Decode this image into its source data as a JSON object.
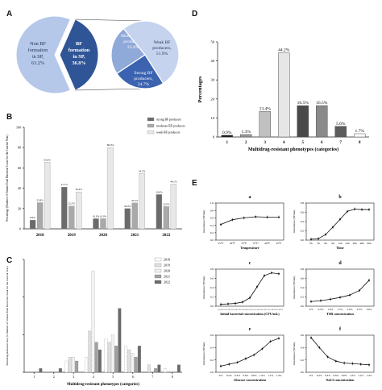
{
  "panels": {
    "a": "A",
    "b": "B",
    "c": "C",
    "d": "D",
    "e": "E"
  },
  "pie": {
    "left_label": [
      "Non BF",
      "formation",
      "in SP,",
      "63.2%"
    ],
    "center_label": [
      "BF",
      "formation",
      "in SP,",
      "36.8%"
    ],
    "right_slices": [
      {
        "lines": [
          "Moderate BF",
          "producers,",
          "23.4%"
        ],
        "color": "#8fa9d8"
      },
      {
        "lines": [
          "Weak BF",
          "producers,",
          "51.9%"
        ],
        "color": "#c5d3ee"
      },
      {
        "lines": [
          "Strong BF",
          "producers,",
          "24.7%"
        ],
        "color": "#3c63b0"
      }
    ],
    "colors": {
      "nonbf": "#b5c8ea",
      "bf": "#2f5597"
    }
  },
  "chart_data": [
    {
      "id": "B",
      "type": "bar",
      "categories": [
        "2018",
        "2019",
        "2020",
        "2021",
        "2022"
      ],
      "series": [
        {
          "name": "strong BF producers",
          "values": [
            8.6,
            41.1,
            10.0,
            20.0,
            33.8
          ],
          "labels": [
            "8.6%",
            "41.1%",
            "10.0%",
            "20.0%",
            "33.8%"
          ],
          "color": "#6b6b6b"
        },
        {
          "name": "moderate BF producers",
          "values": [
            25.8,
            22.5,
            10.0,
            25.5,
            22.0
          ],
          "labels": [
            "25.8%",
            "22.5%",
            "10.0%",
            "25.5%",
            "22.0%"
          ],
          "color": "#a9a9a9"
        },
        {
          "name": "weak BF producers",
          "values": [
            65.6,
            36.4,
            80.0,
            54.5,
            44.1
          ],
          "labels": [
            "65.6%",
            "36.4%",
            "80.0%",
            "54.5%",
            "44.1%"
          ],
          "color": "#e8e8e8"
        }
      ],
      "ylabel": "Percentage (Number of Strains/Total Bacterial Count for the Current Year)",
      "ylim": [
        0,
        100
      ]
    },
    {
      "id": "C",
      "type": "bar",
      "categories": [
        "1",
        "2",
        "3",
        "4",
        "5",
        "6",
        "7",
        "8"
      ],
      "series": [
        {
          "name": "2018",
          "values": [
            0,
            0,
            3,
            4,
            9,
            7,
            0,
            1
          ],
          "color": "#ffffff"
        },
        {
          "name": "2019",
          "values": [
            0,
            0,
            4,
            11,
            8,
            6,
            2,
            0
          ],
          "color": "#e0e0e0"
        },
        {
          "name": "2020",
          "values": [
            0,
            0,
            4,
            27,
            10,
            5,
            0,
            0
          ],
          "color": "#f2f2f2"
        },
        {
          "name": "2021",
          "values": [
            0,
            0,
            3,
            8,
            7,
            4,
            1,
            0
          ],
          "color": "#a0a0a0"
        },
        {
          "name": "2022",
          "values": [
            1,
            1,
            0,
            6,
            17,
            7,
            2,
            2
          ],
          "color": "#6a6a6a"
        }
      ],
      "xlabel": "Multidrug-resistant phenotypes (categories)",
      "ylabel": "Multidrug-Resistant rate (% Number of Strains/Total Bacterial Count for the Current Year)",
      "ylim": [
        0,
        30
      ]
    },
    {
      "id": "D",
      "type": "bar",
      "categories": [
        "1",
        "2",
        "3",
        "4",
        "5",
        "6",
        "7",
        "8"
      ],
      "values": [
        0.9,
        1.3,
        13.4,
        44.2,
        16.5,
        16.5,
        5.6,
        1.7
      ],
      "labels": [
        "0.9%",
        "1.3%",
        "13.4%",
        "44.2%",
        "16.5%",
        "16.5%",
        "5.6%",
        "1.7%"
      ],
      "colors": [
        "#111111",
        "#9a9a9a",
        "#c0c0c0",
        "#e6e6e6",
        "#4a4a4a",
        "#8a8a8a",
        "#5c5c5c",
        "#ffffff"
      ],
      "xlabel": "Multidrug-resistant phenotypes (categories)",
      "ylabel": "Percentages",
      "ylim": [
        0,
        50
      ]
    },
    {
      "id": "E-a",
      "type": "line",
      "title": "a",
      "x": [
        "25℃",
        "30℃",
        "35℃",
        "37℃",
        "40℃",
        "45℃"
      ],
      "y": [
        0.42,
        0.55,
        0.6,
        0.63,
        0.62,
        0.62
      ],
      "xlabel": "Temperature",
      "ylabel": "Absorbance (595nm)",
      "ylim": [
        0,
        1.0
      ],
      "ytick_labels": [
        "0.0",
        "0.2",
        "0.4",
        "0.6",
        "0.8",
        "1.0"
      ]
    },
    {
      "id": "E-b",
      "type": "line",
      "title": "b",
      "x": [
        "0h",
        "3h",
        "6h",
        "9h",
        "12h",
        "24h",
        "36h",
        "48h",
        "60h"
      ],
      "y": [
        0.02,
        0.03,
        0.12,
        0.28,
        0.45,
        0.62,
        0.67,
        0.66,
        0.66
      ],
      "xlabel": "Time",
      "ylabel": "Absorbance (595nm)",
      "ylim": [
        0,
        0.8
      ],
      "ytick_labels": [
        "0.0",
        "0.2",
        "0.4",
        "0.6",
        "0.8"
      ]
    },
    {
      "id": "E-c",
      "type": "line",
      "title": "c",
      "x": [
        "1.5×10^1",
        "1.5×10^2",
        "1.5×10^3",
        "1.5×10^4",
        "1.5×10^5",
        "1.5×10^6",
        "1.5×10^7",
        "1.5×10^8",
        "1.5×10^9"
      ],
      "y": [
        0.04,
        0.05,
        0.06,
        0.09,
        0.18,
        0.42,
        0.66,
        0.72,
        0.7
      ],
      "xlabel": "Initial bacterial concentration (CFU/mL)",
      "ylabel": "Absorbance (595nm)",
      "ylim": [
        0,
        0.8
      ],
      "ytick_labels": [
        "0.0",
        "0.2",
        "0.4",
        "0.6",
        "0.8"
      ]
    },
    {
      "id": "E-d",
      "type": "line",
      "title": "d",
      "x": [
        "0%",
        "0.5%",
        "1.0%",
        "1.5%",
        "2.0%",
        "2.5%",
        "3.0%"
      ],
      "y": [
        0.1,
        0.12,
        0.15,
        0.19,
        0.24,
        0.34,
        0.56
      ],
      "xlabel": "TSB concentration",
      "ylabel": "Absorbance (595nm)",
      "ylim": [
        0,
        0.8
      ],
      "ytick_labels": [
        "0.0",
        "0.2",
        "0.4",
        "0.6",
        "0.8"
      ]
    },
    {
      "id": "E-e",
      "type": "line",
      "title": "e",
      "x": [
        "0%",
        "0.2%",
        "0.4%",
        "0.6%",
        "0.8%",
        "1.0%",
        "1.2%",
        "1.4%"
      ],
      "y": [
        0.1,
        0.13,
        0.16,
        0.22,
        0.28,
        0.38,
        0.5,
        0.55
      ],
      "xlabel": "Glucose concentration",
      "ylabel": "Absorbance (595nm)",
      "ylim": [
        0,
        0.6
      ],
      "ytick_labels": [
        "0.0",
        "0.2",
        "0.4",
        "0.6"
      ]
    },
    {
      "id": "E-f",
      "type": "line",
      "title": "f",
      "x": [
        "0%",
        "0.2%",
        "0.4%",
        "0.6%",
        "0.8%",
        "1.0%",
        "1.2%",
        "1.4%"
      ],
      "y": [
        0.56,
        0.4,
        0.25,
        0.18,
        0.15,
        0.14,
        0.13,
        0.12
      ],
      "xlabel": "NaCl concentration",
      "ylabel": "Absorbance (595nm)",
      "ylim": [
        0,
        0.6
      ],
      "ytick_labels": [
        "0.0",
        "0.2",
        "0.4",
        "0.6"
      ]
    }
  ]
}
